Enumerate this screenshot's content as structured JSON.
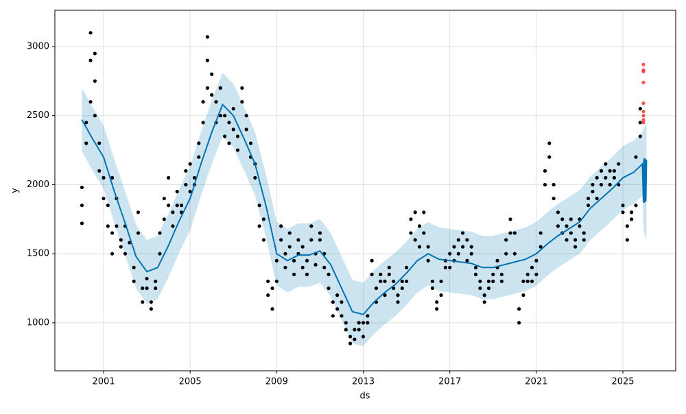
{
  "chart_data": {
    "type": "forecast",
    "x_label": "ds",
    "y_label": "y",
    "xlim": [
      1998.75,
      2027.44
    ],
    "ylim": [
      652,
      3263
    ],
    "xticks": [
      2001,
      2005,
      2009,
      2013,
      2017,
      2021,
      2025
    ],
    "yticks": [
      1000,
      1500,
      2000,
      2500,
      3000
    ],
    "grid": true,
    "series": [
      {
        "type": "band",
        "color": "#0072B2",
        "x": [
          2000.0,
          2000.5,
          2001.0,
          2001.5,
          2002.0,
          2002.5,
          2003.0,
          2003.5,
          2004.0,
          2004.5,
          2005.0,
          2005.5,
          2006.0,
          2006.5,
          2007.0,
          2007.5,
          2008.0,
          2008.5,
          2009.0,
          2009.5,
          2010.0,
          2010.5,
          2011.0,
          2011.5,
          2012.0,
          2012.5,
          2013.0,
          2013.5,
          2014.0,
          2014.5,
          2015.0,
          2015.5,
          2016.0,
          2016.5,
          2017.0,
          2017.5,
          2018.0,
          2018.5,
          2019.0,
          2019.5,
          2020.0,
          2020.5,
          2021.0,
          2021.5,
          2022.0,
          2022.5,
          2023.0,
          2023.5,
          2024.0,
          2024.5,
          2025.0,
          2025.5,
          2025.9,
          2025.95,
          2025.97,
          2026.0,
          2026.03,
          2026.06,
          2026.09
        ],
        "lower": [
          2240,
          2100,
          1970,
          1720,
          1490,
          1250,
          1140,
          1170,
          1330,
          1510,
          1670,
          1920,
          2150,
          2350,
          2270,
          2100,
          1920,
          1620,
          1270,
          1220,
          1260,
          1260,
          1290,
          1190,
          1020,
          850,
          830,
          920,
          990,
          1050,
          1130,
          1220,
          1270,
          1230,
          1220,
          1210,
          1200,
          1170,
          1170,
          1190,
          1210,
          1230,
          1270,
          1340,
          1400,
          1450,
          1500,
          1600,
          1670,
          1740,
          1820,
          1860,
          1920,
          1700,
          1650,
          1640,
          1620,
          1610,
          1610
        ],
        "upper": [
          2700,
          2560,
          2430,
          2180,
          1950,
          1710,
          1600,
          1630,
          1790,
          1970,
          2130,
          2380,
          2610,
          2810,
          2730,
          2560,
          2380,
          2080,
          1730,
          1680,
          1720,
          1720,
          1750,
          1650,
          1480,
          1310,
          1290,
          1380,
          1450,
          1510,
          1590,
          1680,
          1730,
          1690,
          1680,
          1670,
          1660,
          1630,
          1630,
          1650,
          1670,
          1690,
          1730,
          1800,
          1860,
          1910,
          1960,
          2060,
          2130,
          2200,
          2280,
          2320,
          2380,
          2400,
          2410,
          2420,
          2430,
          2430,
          2440
        ]
      },
      {
        "type": "scatter",
        "color": "#000000",
        "x": [
          2000.0,
          2000.0,
          2000.0,
          2000.2,
          2000.2,
          2000.4,
          2000.4,
          2000.4,
          2000.6,
          2000.6,
          2000.6,
          2000.8,
          2000.8,
          2001.0,
          2001.0,
          2001.2,
          2001.2,
          2001.4,
          2001.4,
          2001.4,
          2001.6,
          2001.6,
          2001.8,
          2001.8,
          2002.0,
          2002.0,
          2002.2,
          2002.4,
          2002.4,
          2002.6,
          2002.6,
          2002.8,
          2002.8,
          2003.0,
          2003.0,
          2003.2,
          2003.2,
          2003.4,
          2003.4,
          2003.6,
          2003.6,
          2003.8,
          2003.8,
          2004.0,
          2004.0,
          2004.2,
          2004.2,
          2004.4,
          2004.4,
          2004.6,
          2004.6,
          2004.8,
          2004.8,
          2005.0,
          2005.0,
          2005.2,
          2005.2,
          2005.4,
          2005.4,
          2005.6,
          2005.6,
          2005.8,
          2005.8,
          2005.8,
          2006.0,
          2006.0,
          2006.2,
          2006.2,
          2006.4,
          2006.4,
          2006.6,
          2006.6,
          2006.8,
          2006.8,
          2007.0,
          2007.0,
          2007.2,
          2007.2,
          2007.4,
          2007.4,
          2007.6,
          2007.6,
          2007.8,
          2007.8,
          2008.0,
          2008.0,
          2008.2,
          2008.2,
          2008.4,
          2008.4,
          2008.6,
          2008.6,
          2008.8,
          2008.8,
          2009.0,
          2009.0,
          2009.2,
          2009.2,
          2009.4,
          2009.4,
          2009.6,
          2009.6,
          2009.8,
          2009.8,
          2010.0,
          2010.0,
          2010.2,
          2010.2,
          2010.4,
          2010.4,
          2010.6,
          2010.6,
          2010.8,
          2010.8,
          2011.0,
          2011.0,
          2011.2,
          2011.2,
          2011.4,
          2011.4,
          2011.6,
          2011.6,
          2011.8,
          2011.8,
          2012.0,
          2012.0,
          2012.2,
          2012.2,
          2012.4,
          2012.4,
          2012.6,
          2012.6,
          2012.8,
          2012.8,
          2013.0,
          2013.0,
          2013.2,
          2013.2,
          2013.4,
          2013.4,
          2013.6,
          2013.6,
          2013.8,
          2013.8,
          2014.0,
          2014.0,
          2014.2,
          2014.2,
          2014.4,
          2014.4,
          2014.6,
          2014.6,
          2014.8,
          2014.8,
          2015.0,
          2015.0,
          2015.2,
          2015.2,
          2015.4,
          2015.4,
          2015.6,
          2015.6,
          2015.8,
          2015.8,
          2016.0,
          2016.0,
          2016.2,
          2016.2,
          2016.4,
          2016.4,
          2016.6,
          2016.6,
          2016.8,
          2016.8,
          2017.0,
          2017.0,
          2017.2,
          2017.2,
          2017.4,
          2017.4,
          2017.6,
          2017.6,
          2017.8,
          2017.8,
          2018.0,
          2018.0,
          2018.2,
          2018.2,
          2018.4,
          2018.4,
          2018.6,
          2018.6,
          2018.8,
          2018.8,
          2019.0,
          2019.0,
          2019.2,
          2019.2,
          2019.4,
          2019.4,
          2019.6,
          2019.6,
          2019.8,
          2019.8,
          2020.0,
          2020.0,
          2020.2,
          2020.2,
          2020.4,
          2020.4,
          2020.6,
          2020.6,
          2020.8,
          2020.8,
          2021.0,
          2021.0,
          2021.2,
          2021.2,
          2021.4,
          2021.4,
          2021.6,
          2021.6,
          2021.8,
          2021.8,
          2022.0,
          2022.0,
          2022.2,
          2022.2,
          2022.4,
          2022.4,
          2022.6,
          2022.6,
          2022.8,
          2022.8,
          2023.0,
          2023.0,
          2023.2,
          2023.2,
          2023.4,
          2023.4,
          2023.6,
          2023.6,
          2023.8,
          2023.8,
          2024.0,
          2024.0,
          2024.2,
          2024.2,
          2024.4,
          2024.4,
          2024.6,
          2024.6,
          2024.8,
          2024.8,
          2025.0,
          2025.0,
          2025.2,
          2025.2,
          2025.4,
          2025.4,
          2025.6,
          2025.6,
          2025.8,
          2025.8,
          2025.8
        ],
        "values": [
          1720,
          1850,
          1980,
          2300,
          2450,
          2600,
          2900,
          3100,
          2750,
          2500,
          2950,
          2300,
          2100,
          1900,
          2050,
          1700,
          1850,
          1500,
          1650,
          2050,
          1900,
          1700,
          1600,
          1550,
          1500,
          1700,
          1580,
          1400,
          1300,
          1650,
          1800,
          1250,
          1150,
          1250,
          1320,
          1150,
          1100,
          1300,
          1250,
          1500,
          1650,
          1750,
          1900,
          1850,
          2050,
          1800,
          1700,
          1850,
          1950,
          1850,
          1800,
          2000,
          2100,
          1950,
          2150,
          2050,
          2000,
          2200,
          2300,
          2450,
          2600,
          2700,
          2900,
          3070,
          2800,
          2650,
          2600,
          2450,
          2500,
          2700,
          2500,
          2350,
          2300,
          2450,
          2400,
          2550,
          2350,
          2250,
          2600,
          2700,
          2400,
          2500,
          2200,
          2300,
          2050,
          2150,
          1850,
          1700,
          1750,
          1600,
          1300,
          1200,
          1100,
          1250,
          1300,
          1450,
          1600,
          1700,
          1500,
          1400,
          1650,
          1550,
          1450,
          1350,
          1600,
          1500,
          1400,
          1550,
          1450,
          1350,
          1700,
          1600,
          1500,
          1420,
          1650,
          1600,
          1500,
          1400,
          1350,
          1250,
          1150,
          1050,
          1100,
          1200,
          1150,
          1050,
          1000,
          950,
          900,
          850,
          880,
          950,
          950,
          1000,
          900,
          1000,
          1050,
          1000,
          1350,
          1450,
          1250,
          1150,
          1300,
          1350,
          1300,
          1200,
          1350,
          1400,
          1250,
          1300,
          1200,
          1150,
          1250,
          1300,
          1400,
          1300,
          1650,
          1750,
          1600,
          1800,
          1700,
          1550,
          1650,
          1800,
          1550,
          1450,
          1300,
          1250,
          1150,
          1100,
          1200,
          1300,
          1400,
          1450,
          1500,
          1400,
          1550,
          1450,
          1500,
          1600,
          1550,
          1650,
          1600,
          1450,
          1550,
          1500,
          1400,
          1350,
          1300,
          1250,
          1200,
          1150,
          1250,
          1300,
          1350,
          1300,
          1450,
          1400,
          1350,
          1300,
          1500,
          1600,
          1650,
          1750,
          1650,
          1500,
          1100,
          1000,
          1200,
          1300,
          1350,
          1300,
          1400,
          1300,
          1350,
          1450,
          1550,
          1650,
          2000,
          2100,
          2200,
          2300,
          2000,
          1900,
          1800,
          1700,
          1750,
          1650,
          1600,
          1700,
          1750,
          1650,
          1600,
          1550,
          1700,
          1750,
          1650,
          1600,
          1850,
          1900,
          1950,
          2000,
          1900,
          2050,
          2000,
          2100,
          2050,
          2150,
          2000,
          2100,
          2100,
          2050,
          2150,
          2000,
          1800,
          1850,
          1600,
          1700,
          1750,
          1800,
          1850,
          2200,
          2350,
          2450,
          2550
        ]
      },
      {
        "type": "line",
        "color": "#0072B2",
        "x": [
          2000.0,
          2000.5,
          2001.0,
          2001.5,
          2002.0,
          2002.5,
          2003.0,
          2003.5,
          2004.0,
          2004.5,
          2005.0,
          2005.5,
          2006.0,
          2006.5,
          2007.0,
          2007.5,
          2008.0,
          2008.5,
          2009.0,
          2009.5,
          2010.0,
          2010.5,
          2011.0,
          2011.5,
          2012.0,
          2012.5,
          2013.0,
          2013.5,
          2014.0,
          2014.5,
          2015.0,
          2015.5,
          2016.0,
          2016.5,
          2017.0,
          2017.5,
          2018.0,
          2018.5,
          2019.0,
          2019.5,
          2020.0,
          2020.5,
          2021.0,
          2021.5,
          2022.0,
          2022.5,
          2023.0,
          2023.5,
          2024.0,
          2024.5,
          2025.0,
          2025.5,
          2025.9,
          2025.95,
          2025.97,
          2026.0,
          2026.03,
          2026.06,
          2026.09
        ],
        "values": [
          2470,
          2330,
          2200,
          1950,
          1720,
          1480,
          1370,
          1400,
          1560,
          1740,
          1900,
          2150,
          2380,
          2580,
          2500,
          2330,
          2150,
          1850,
          1500,
          1450,
          1490,
          1490,
          1520,
          1420,
          1250,
          1080,
          1060,
          1150,
          1220,
          1280,
          1360,
          1450,
          1500,
          1460,
          1450,
          1440,
          1430,
          1400,
          1400,
          1420,
          1440,
          1460,
          1500,
          1570,
          1630,
          1680,
          1730,
          1830,
          1900,
          1970,
          2050,
          2090,
          2150,
          1870,
          2190,
          1870,
          2190,
          1880,
          2180
        ]
      },
      {
        "type": "scatter",
        "color": "#ff2a2a",
        "x": [
          2025.95,
          2025.95,
          2025.95,
          2025.95,
          2025.95,
          2025.95,
          2025.95,
          2025.95,
          2025.95
        ],
        "values": [
          2870,
          2830,
          2820,
          2740,
          2590,
          2530,
          2500,
          2470,
          2450
        ]
      }
    ]
  }
}
